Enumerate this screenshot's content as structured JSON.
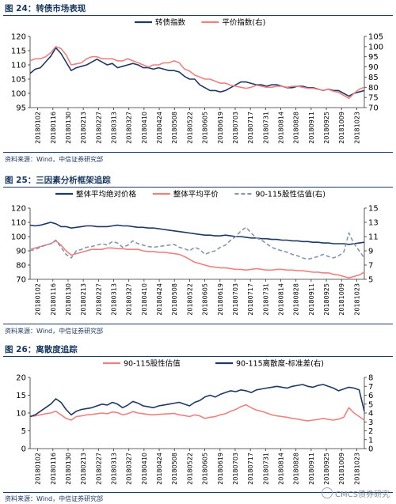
{
  "watermark": "CMCS债券研究",
  "charts": [
    {
      "title": "图 24：转债市场表现",
      "source": "资料来源：Wind，中信证券研究部",
      "chart_data": {
        "type": "line",
        "x_ticks": [
          "20180102",
          "20180116",
          "20180130",
          "20180213",
          "20180227",
          "20180313",
          "20180327",
          "20180410",
          "20180424",
          "20180508",
          "20180522",
          "20180605",
          "20180619",
          "20180703",
          "20180717",
          "20180731",
          "20180814",
          "20180828",
          "20180911",
          "20180925",
          "20181009",
          "20181023"
        ],
        "left_axis": {
          "min": 95,
          "max": 120,
          "ticks": [
            95,
            100,
            105,
            110,
            115,
            120
          ]
        },
        "right_axis": {
          "min": 70,
          "max": 105,
          "ticks": [
            70,
            75,
            80,
            85,
            90,
            95,
            100,
            105
          ]
        },
        "legend_position": "top-center",
        "series": [
          {
            "name": "转债指数",
            "axis": "left",
            "color": "#1f3864",
            "values": [
              107,
              108.5,
              109,
              111,
              113,
              116,
              114,
              111,
              108,
              109,
              109.5,
              110,
              111,
              112,
              111,
              110,
              110.5,
              109,
              109.5,
              110,
              110.5,
              110,
              109,
              109,
              108.5,
              109,
              108.5,
              108,
              108,
              107.5,
              106,
              105,
              105,
              103,
              102,
              101,
              101,
              100.5,
              101,
              102,
              103,
              104,
              104,
              103.5,
              103,
              103,
              102.5,
              103,
              103,
              102.5,
              102,
              102,
              102.5,
              102.5,
              102,
              102,
              101.5,
              101,
              101.5,
              101,
              101,
              100,
              99,
              100,
              100.5,
              101
            ]
          },
          {
            "name": "平价指数(右)",
            "axis": "right",
            "color": "#f08080",
            "values": [
              93,
              94,
              94,
              95,
              97,
              100,
              99,
              96,
              91,
              91.5,
              92,
              94,
              95,
              95,
              94,
              94,
              94,
              93,
              93,
              94,
              93,
              92,
              91,
              90,
              91,
              91,
              92,
              92,
              93,
              92,
              89,
              88,
              86,
              85,
              84,
              84,
              83,
              82,
              82,
              81,
              80.5,
              80,
              79.5,
              80,
              81,
              80.5,
              80,
              80,
              80.5,
              80.5,
              80,
              80.5,
              80.5,
              80,
              79.5,
              79.5,
              79,
              78.5,
              79,
              78,
              77.5,
              76,
              74.5,
              77,
              79,
              80
            ]
          }
        ]
      }
    },
    {
      "title": "图 25：三因素分析框架追踪",
      "source": "资料来源：Wind，中信证券研究部",
      "chart_data": {
        "type": "line",
        "x_ticks": [
          "20180102",
          "20180116",
          "20180130",
          "20180213",
          "20180227",
          "20180313",
          "20180327",
          "20180410",
          "20180424",
          "20180508",
          "20180522",
          "20180605",
          "20180619",
          "20180703",
          "20180717",
          "20180731",
          "20180814",
          "20180828",
          "20180911",
          "20180925",
          "20181009",
          "20181023"
        ],
        "left_axis": {
          "min": 70,
          "max": 120,
          "ticks": [
            70,
            80,
            90,
            100,
            110,
            120
          ]
        },
        "right_axis": {
          "min": 5,
          "max": 15,
          "ticks": [
            5,
            7,
            9,
            11,
            13,
            15
          ]
        },
        "legend_position": "top-center",
        "series": [
          {
            "name": "整体平均绝对价格",
            "axis": "left",
            "color": "#1f3864",
            "values": [
              108,
              107.5,
              108,
              109,
              110,
              109,
              107,
              107,
              106,
              106.5,
              107,
              107.5,
              107.5,
              107,
              107,
              107,
              107.5,
              108,
              107.5,
              107.5,
              107,
              106.5,
              106.5,
              106,
              106,
              105.5,
              105,
              104.5,
              104,
              103.5,
              103,
              102.5,
              102,
              101.5,
              101,
              101,
              100.5,
              100.5,
              101,
              100.5,
              100,
              100,
              99.5,
              99,
              99,
              98.5,
              98.5,
              98,
              98,
              97.5,
              97.5,
              97,
              97,
              96.5,
              96.5,
              96,
              96,
              95.5,
              95.5,
              95,
              95,
              95,
              94.5,
              95,
              95.5,
              96
            ]
          },
          {
            "name": "整体平均平价",
            "axis": "left",
            "color": "#f08080",
            "values": [
              91,
              92,
              93,
              94,
              95,
              97,
              94,
              90,
              87,
              88,
              89,
              90,
              91,
              91,
              91,
              92,
              92,
              91.5,
              91.5,
              91,
              91,
              91,
              90,
              89.5,
              89.5,
              89,
              89,
              88.5,
              88,
              87.5,
              86,
              84,
              82,
              81,
              80,
              79,
              78.5,
              78,
              78,
              77.5,
              77,
              77,
              76.5,
              77,
              77.5,
              77,
              76.5,
              76.5,
              77,
              77,
              76.5,
              76.5,
              76,
              76,
              75.5,
              75,
              75,
              74.5,
              74.5,
              73.5,
              73,
              72,
              71,
              72,
              73,
              75
            ]
          },
          {
            "name": "90-115股性估值(右)",
            "axis": "right",
            "color": "#8497b0",
            "dashed": true,
            "values": [
              9,
              9.2,
              9.5,
              9.8,
              10,
              10.5,
              9.5,
              8.5,
              8,
              9,
              9.2,
              9.5,
              9.6,
              9.8,
              10,
              9.8,
              10.3,
              10.1,
              9.5,
              9.8,
              10.4,
              10,
              9.8,
              9.6,
              9.5,
              9.6,
              9.7,
              9.8,
              9.9,
              9.5,
              9.3,
              9,
              9.5,
              9.2,
              8.5,
              8.8,
              9,
              9.5,
              9.8,
              10.5,
              11,
              11.8,
              12.3,
              11.5,
              10.8,
              10.5,
              10,
              9.5,
              9.2,
              9,
              8.8,
              8.5,
              8.3,
              8,
              7.8,
              8,
              8.2,
              8.5,
              8.2,
              8,
              8.3,
              8.8,
              11.5,
              10,
              9,
              8
            ]
          }
        ]
      }
    },
    {
      "title": "图 26：离散度追踪",
      "source": "资料来源：Wind，中信证券研究部",
      "chart_data": {
        "type": "line",
        "x_ticks": [
          "20180102",
          "20180116",
          "20180130",
          "20180213",
          "20180227",
          "20180313",
          "20180327",
          "20180410",
          "20180424",
          "20180508",
          "20180522",
          "20180605",
          "20180619",
          "20180703",
          "20180717",
          "20180731",
          "20180814",
          "20180828",
          "20180911",
          "20180925",
          "20181009",
          "20181023"
        ],
        "left_axis": {
          "min": 0,
          "max": 20,
          "ticks": [
            0,
            5,
            10,
            15,
            20
          ]
        },
        "right_axis": {
          "min": 0,
          "max": 8,
          "ticks": [
            0,
            1,
            2,
            3,
            4,
            5,
            6,
            7,
            8
          ]
        },
        "legend_position": "top-center",
        "series": [
          {
            "name": "90-115股性估值",
            "axis": "left",
            "color": "#f08080",
            "values": [
              9,
              9.2,
              9.5,
              9.8,
              10,
              10.5,
              9.5,
              8.5,
              8,
              9,
              9.2,
              9.5,
              9.6,
              9.8,
              10,
              9.8,
              10.3,
              10.1,
              9.5,
              9.8,
              10.4,
              10,
              9.8,
              9.6,
              9.5,
              9.6,
              9.7,
              9.8,
              9.9,
              9.5,
              9.3,
              9,
              9.5,
              9.2,
              8.5,
              8.8,
              9,
              9.5,
              9.8,
              10.5,
              11,
              11.8,
              12.3,
              11.5,
              10.8,
              10.5,
              10,
              9.5,
              9.2,
              9,
              8.8,
              8.5,
              8.3,
              8,
              7.8,
              8,
              8.2,
              8.5,
              8.2,
              8,
              8.3,
              8.8,
              11.5,
              10,
              9,
              8
            ]
          },
          {
            "name": "90-115离散度-标准差(右)",
            "axis": "right",
            "color": "#1f3864",
            "values": [
              3.6,
              3.8,
              4.2,
              4.6,
              5,
              5.6,
              5.2,
              4.4,
              3.8,
              4.2,
              4.4,
              4.5,
              4.6,
              4.8,
              5,
              4.9,
              5.2,
              5,
              4.6,
              4.9,
              5.3,
              5.1,
              4.8,
              4.7,
              4.6,
              4.8,
              4.9,
              5,
              5.1,
              5.2,
              5,
              4.8,
              5.2,
              5.4,
              5.8,
              6,
              5.8,
              6.1,
              6.3,
              6.5,
              6.4,
              6.6,
              6.5,
              6.3,
              6.6,
              6.7,
              6.8,
              6.9,
              7,
              6.9,
              6.8,
              7,
              7.1,
              7.2,
              7,
              6.9,
              7.1,
              7.2,
              7,
              6.8,
              6.5,
              6.7,
              6.9,
              6.8,
              6.6,
              4.2
            ]
          }
        ]
      }
    }
  ]
}
